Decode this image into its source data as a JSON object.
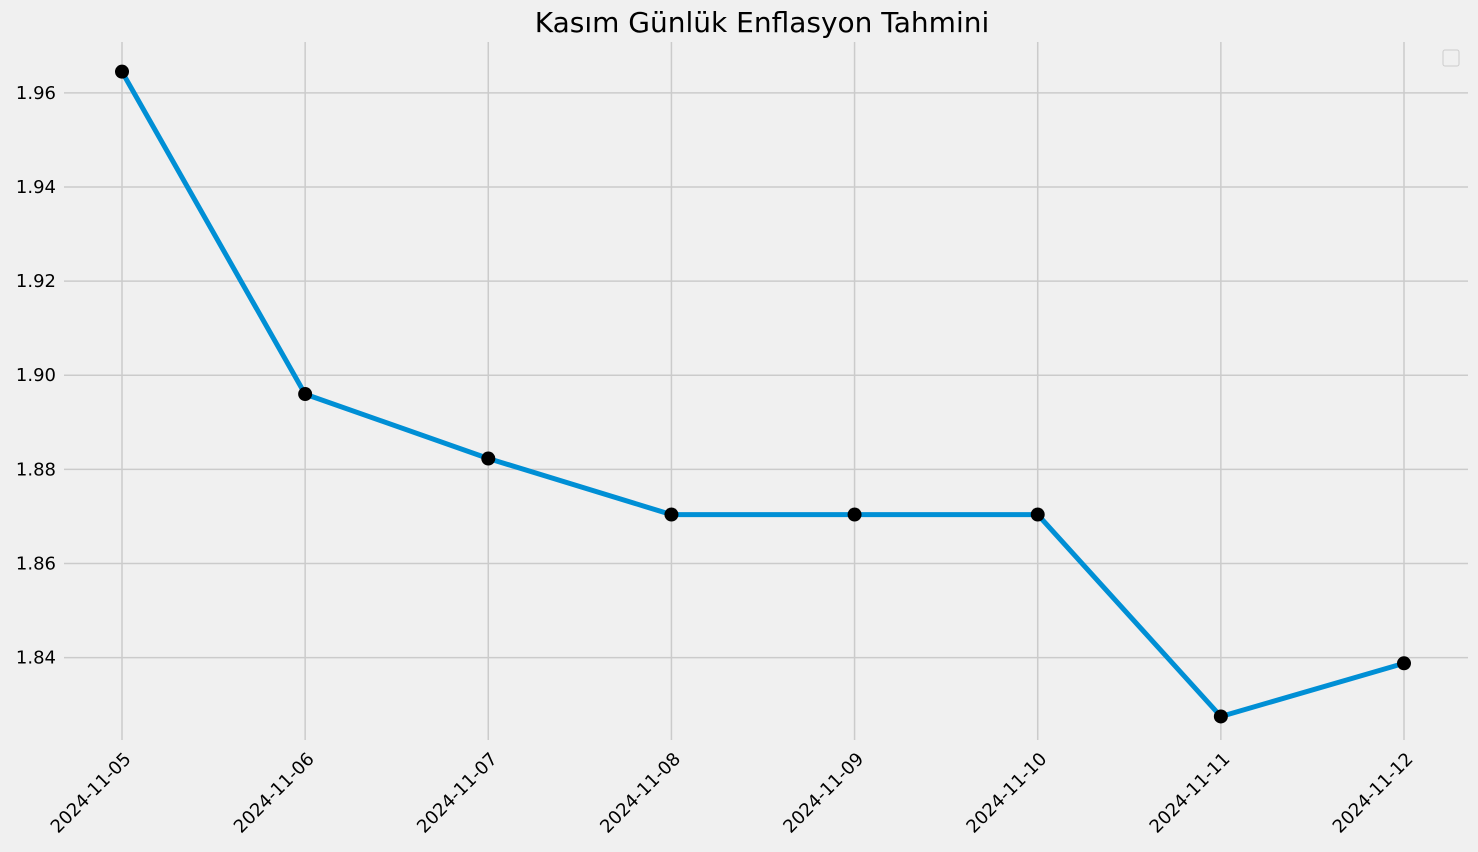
{
  "chart_data": {
    "type": "line",
    "title": "Kasım Günlük Enflasyon Tahmini",
    "xlabel": "",
    "ylabel": "",
    "categories": [
      "2024-11-05",
      "2024-11-06",
      "2024-11-07",
      "2024-11-08",
      "2024-11-09",
      "2024-11-10",
      "2024-11-11",
      "2024-11-12"
    ],
    "series": [
      {
        "values": [
          1.9645,
          1.896,
          1.8823,
          1.8704,
          1.8704,
          1.8704,
          1.8275,
          1.8388
        ]
      }
    ],
    "ylim": [
      1.8225,
      1.9708
    ],
    "yticks": [
      "1.84",
      "1.86",
      "1.88",
      "1.90",
      "1.92",
      "1.94",
      "1.96"
    ],
    "grid": true,
    "legend": "top-right, empty",
    "line_color": "#008fd5",
    "marker_color": "#000000",
    "background_color": "#f0f0f0",
    "grid_color": "#cbcbcb"
  }
}
